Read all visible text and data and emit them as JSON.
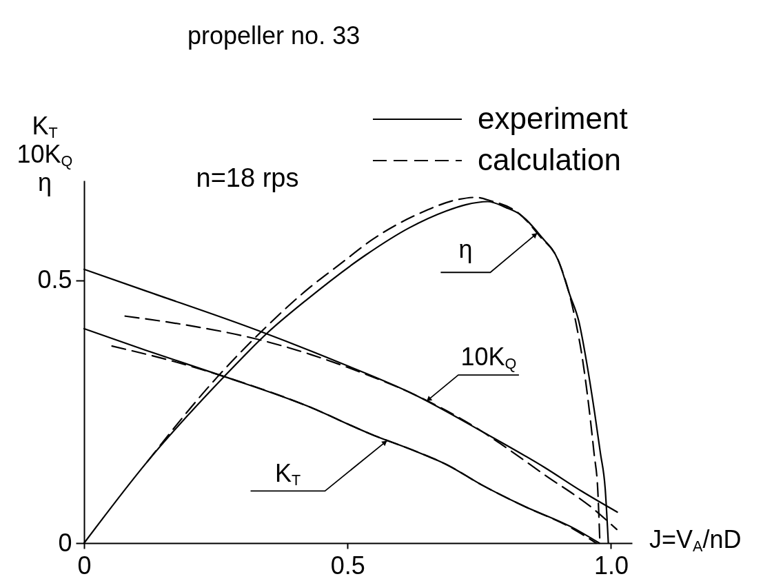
{
  "chart_data": {
    "type": "line",
    "title": "propeller no. 33",
    "xlabel": "J=V$_{A}$/nD",
    "ylabel": "K$_{T}$\n10K$_{Q}$\nη",
    "xlim": [
      0,
      1.04
    ],
    "ylim": [
      0,
      0.69
    ],
    "xticks": [
      0,
      0.5,
      {
        "value": 1,
        "label": "1.0"
      }
    ],
    "yticks": [
      0,
      0.5
    ],
    "legend": "top right",
    "annotations": [
      "n=18 rps",
      {
        "text": "η",
        "x": 0.86,
        "y": 0.59
      },
      {
        "text": "10K$_{Q}$",
        "x": 0.65,
        "y": 0.27
      },
      {
        "text": "K$_{T}$",
        "x": 0.575,
        "y": 0.195
      }
    ],
    "series": [
      {
        "name": "experiment",
        "color": "#000000",
        "line_style": "solid",
        "x": [
          0,
          0.12,
          0.266,
          0.421,
          0.55,
          0.626,
          0.687,
          0.756,
          0.827,
          0.93,
          0.978
        ],
        "values": [
          0.408,
          0.366,
          0.317,
          0.262,
          0.205,
          0.176,
          0.15,
          0.11,
          0.074,
          0.028,
          0
        ]
      },
      {
        "color": "#000000",
        "line_style": "solid",
        "x": [
          0,
          0.12,
          0.329,
          0.491,
          0.626,
          0.756,
          0.874,
          0.944,
          1.012
        ],
        "values": [
          0.521,
          0.479,
          0.405,
          0.341,
          0.283,
          0.212,
          0.144,
          0.099,
          0.059
        ]
      },
      {
        "color": "#000000",
        "line_style": "solid",
        "x": [
          0,
          0.12,
          0.266,
          0.35,
          0.421,
          0.534,
          0.617,
          0.687,
          0.724,
          0.766,
          0.8,
          0.827,
          0.867,
          0.9,
          0.922,
          0.939,
          0.955,
          0.969,
          0.98,
          0.989,
          0.995
        ],
        "values": [
          0,
          0.155,
          0.317,
          0.402,
          0.462,
          0.548,
          0.6,
          0.632,
          0.644,
          0.65,
          0.639,
          0.626,
          0.584,
          0.538,
          0.472,
          0.422,
          0.337,
          0.248,
          0.171,
          0.104,
          0
        ]
      },
      {
        "name": "calculation",
        "color": "#000000",
        "line_style": "dashed",
        "x": [
          0.053,
          0.173,
          0.266,
          0.421,
          0.55,
          0.626,
          0.687,
          0.756,
          0.827,
          0.93,
          0.972
        ],
        "values": [
          0.375,
          0.345,
          0.317,
          0.262,
          0.205,
          0.176,
          0.15,
          0.11,
          0.074,
          0.026,
          0
        ]
      },
      {
        "color": "#000000",
        "line_style": "dashed",
        "x": [
          0.078,
          0.2,
          0.329,
          0.43,
          0.52,
          0.626,
          0.756,
          0.789,
          0.874,
          0.968,
          1.011
        ],
        "values": [
          0.432,
          0.414,
          0.388,
          0.359,
          0.327,
          0.283,
          0.212,
          0.19,
          0.13,
          0.064,
          0.026
        ]
      },
      {
        "color": "#000000",
        "line_style": "dashed",
        "x": [
          0.12,
          0.251,
          0.344,
          0.418,
          0.491,
          0.546,
          0.64,
          0.71,
          0.743,
          0.77,
          0.827,
          0.865,
          0.9,
          0.933,
          0.946,
          0.958,
          0.968,
          0.975,
          0.979
        ],
        "values": [
          0.155,
          0.314,
          0.41,
          0.478,
          0.535,
          0.577,
          0.629,
          0.654,
          0.658,
          0.652,
          0.626,
          0.584,
          0.538,
          0.422,
          0.35,
          0.26,
          0.17,
          0.1,
          0
        ]
      }
    ]
  }
}
